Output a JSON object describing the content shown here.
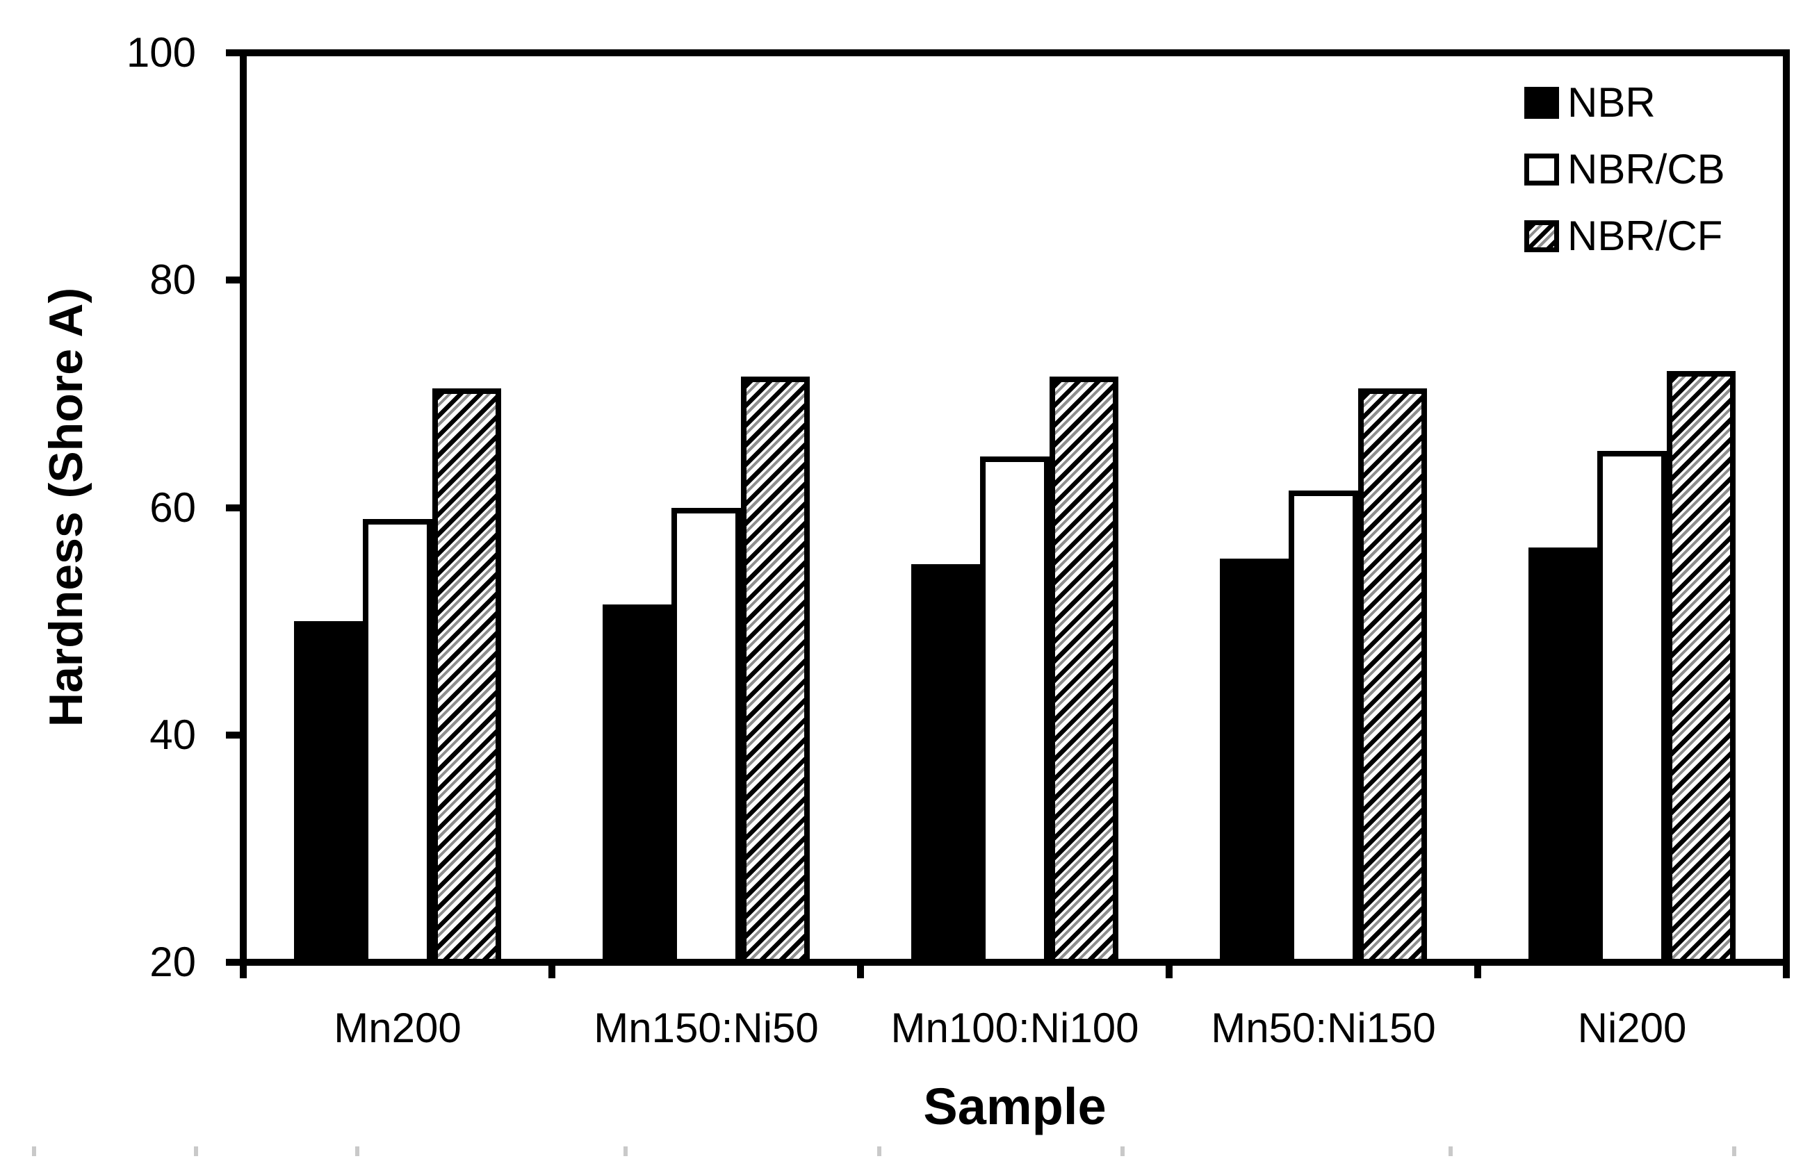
{
  "figure": {
    "background_color": "#ffffff",
    "ink_color": "#000000",
    "artifact_color": "#c9c9c9"
  },
  "chart_data": {
    "type": "bar",
    "title": "",
    "xlabel": "Sample",
    "ylabel": "Hardness (Shore A)",
    "categories": [
      "Mn200",
      "Mn150:Ni50",
      "Mn100:Ni100",
      "Mn50:Ni150",
      "Ni200"
    ],
    "series": [
      {
        "name": "NBR",
        "fill": "solid-black",
        "values": [
          50,
          51.5,
          55,
          55.5,
          56.5
        ]
      },
      {
        "name": "NBR/CB",
        "fill": "white-outline",
        "values": [
          59,
          60,
          64.5,
          61.5,
          65
        ]
      },
      {
        "name": "NBR/CF",
        "fill": "diagonal-hatch",
        "values": [
          70.5,
          71.5,
          71.5,
          70.5,
          72
        ]
      }
    ],
    "ylim": [
      20,
      100
    ],
    "yticks": [
      20,
      40,
      60,
      80,
      100
    ],
    "grid": false,
    "legend_position": "top-right-inside"
  },
  "artifacts": {
    "bottom_edge_marks_x": [
      46,
      279,
      511,
      897,
      1262,
      1612,
      2084,
      2492
    ]
  }
}
